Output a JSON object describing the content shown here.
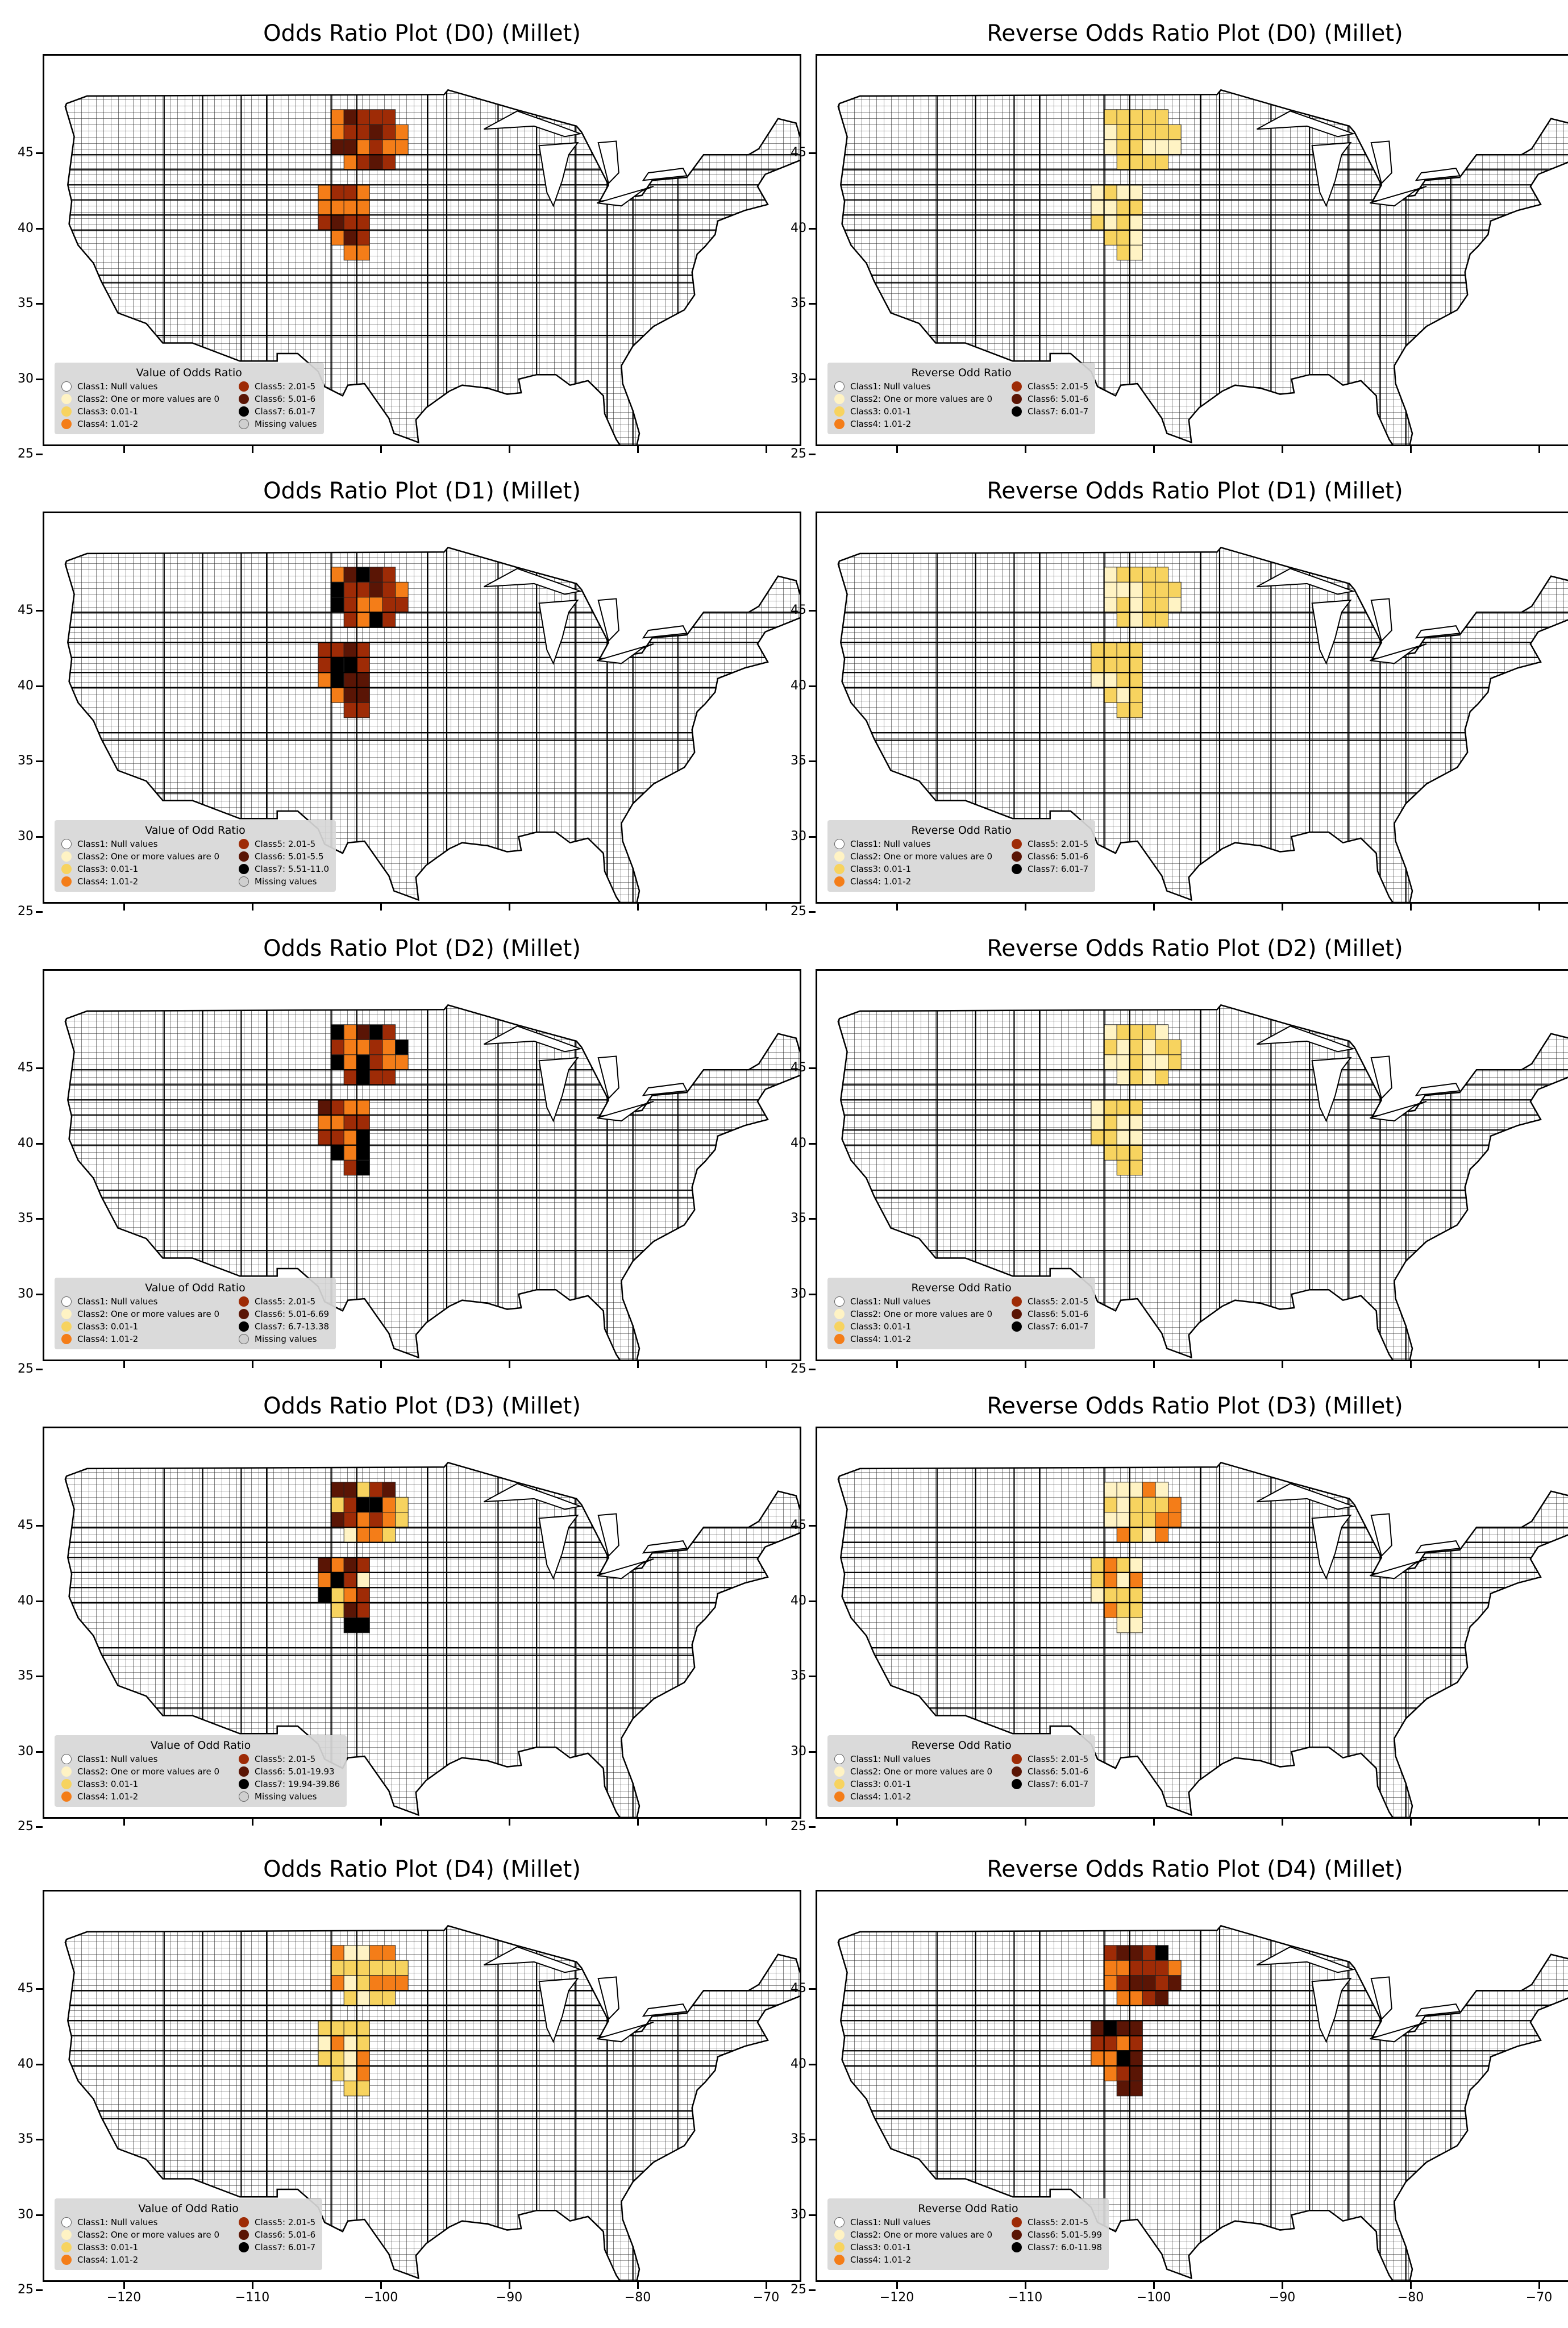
{
  "colors": {
    "class1": "#ffffff",
    "class2": "#fff3c4",
    "class3": "#f7d35f",
    "class4": "#f47d18",
    "class5": "#9e2b06",
    "class6": "#5a1505",
    "class7": "#000000",
    "missing": "#9c9c9c"
  },
  "axes": {
    "y_ticks": [
      "45",
      "40",
      "35",
      "30",
      "25"
    ],
    "x_ticks": [
      "−120",
      "−110",
      "−100",
      "−90",
      "−80",
      "−70"
    ]
  },
  "panels": [
    {
      "title": "Odds Ratio Plot (D0) (Millet)",
      "legend_title": "Value of Odds Ratio",
      "legend": [
        "Class1: Null values",
        "Class2: One or more values are 0",
        "Class3: 0.01-1",
        "Class4: 1.01-2",
        "Class5: 2.01-5",
        "Class6: 5.01-6",
        "Class7: 6.01-7",
        "Missing values"
      ]
    },
    {
      "title": "Reverse Odds Ratio Plot (D0) (Millet)",
      "legend_title": "Reverse Odd Ratio",
      "legend": [
        "Class1: Null values",
        "Class2: One or more values are 0",
        "Class3: 0.01-1",
        "Class4: 1.01-2",
        "Class5: 2.01-5",
        "Class6: 5.01-6",
        "Class7: 6.01-7"
      ]
    },
    {
      "title": "Odds Ratio Plot (D1) (Millet)",
      "legend_title": "Value of Odd Ratio",
      "legend": [
        "Class1: Null values",
        "Class2: One or more values are 0",
        "Class3: 0.01-1",
        "Class4: 1.01-2",
        "Class5: 2.01-5",
        "Class6: 5.01-5.5",
        "Class7: 5.51-11.0",
        "Missing values"
      ]
    },
    {
      "title": "Reverse Odds Ratio Plot (D1) (Millet)",
      "legend_title": "Reverse Odd Ratio",
      "legend": [
        "Class1: Null values",
        "Class2: One or more values are 0",
        "Class3: 0.01-1",
        "Class4: 1.01-2",
        "Class5: 2.01-5",
        "Class6: 5.01-6",
        "Class7: 6.01-7"
      ]
    },
    {
      "title": "Odds Ratio Plot (D2) (Millet)",
      "legend_title": "Value of Odd Ratio",
      "legend": [
        "Class1: Null values",
        "Class2: One or more values are 0",
        "Class3: 0.01-1",
        "Class4: 1.01-2",
        "Class5: 2.01-5",
        "Class6: 5.01-6.69",
        "Class7: 6.7-13.38",
        "Missing values"
      ]
    },
    {
      "title": "Reverse Odds Ratio Plot (D2) (Millet)",
      "legend_title": "Reverse Odd Ratio",
      "legend": [
        "Class1: Null values",
        "Class2: One or more values are 0",
        "Class3: 0.01-1",
        "Class4: 1.01-2",
        "Class5: 2.01-5",
        "Class6: 5.01-6",
        "Class7: 6.01-7"
      ]
    },
    {
      "title": "Odds Ratio Plot (D3) (Millet)",
      "legend_title": "Value of Odd Ratio",
      "legend": [
        "Class1: Null values",
        "Class2: One or more values are 0",
        "Class3: 0.01-1",
        "Class4: 1.01-2",
        "Class5: 2.01-5",
        "Class6: 5.01-19.93",
        "Class7: 19.94-39.86",
        "Missing values"
      ]
    },
    {
      "title": "Reverse Odds Ratio Plot (D3) (Millet)",
      "legend_title": "Reverse Odd Ratio",
      "legend": [
        "Class1: Null values",
        "Class2: One or more values are 0",
        "Class3: 0.01-1",
        "Class4: 1.01-2",
        "Class5: 2.01-5",
        "Class6: 5.01-6",
        "Class7: 6.01-7"
      ]
    },
    {
      "title": "Odds Ratio Plot (D4) (Millet)",
      "legend_title": "Value of Odd Ratio",
      "legend": [
        "Class1: Null values",
        "Class2: One or more values are 0",
        "Class3: 0.01-1",
        "Class4: 1.01-2",
        "Class5: 2.01-5",
        "Class6: 5.01-6",
        "Class7: 6.01-7"
      ]
    },
    {
      "title": "Reverse Odds Ratio Plot (D4) (Millet)",
      "legend_title": "Reverse Odd Ratio",
      "legend": [
        "Class1: Null values",
        "Class2: One or more values are 0",
        "Class3: 0.01-1",
        "Class4: 1.01-2",
        "Class5: 2.01-5",
        "Class6: 5.01-5.99",
        "Class7: 6.0-11.98"
      ]
    }
  ]
}
